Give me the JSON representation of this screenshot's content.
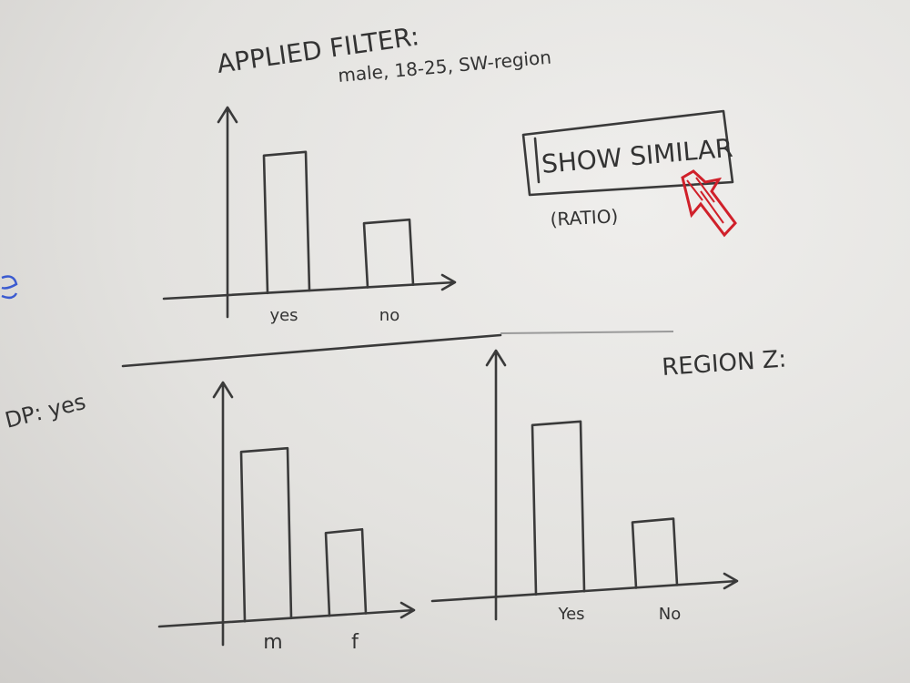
{
  "header": {
    "title": "APPLIED FILTER:",
    "filter": "male, 18-25, SW-region"
  },
  "button": {
    "label": "SHOW SIMILAR",
    "sublabel": "(RATIO)",
    "arrow_color": "#d0202a"
  },
  "side_note": "DP: yes",
  "region_label": "REGION Z:",
  "colors": {
    "ink": "#3a3a3a",
    "accent": "#d0202a",
    "blue_marker": "#3b5bd0"
  },
  "chart_data": [
    {
      "type": "bar",
      "categories": [
        "yes",
        "no"
      ],
      "values": [
        100,
        48
      ],
      "title": "",
      "xlabel": "",
      "ylabel": ""
    },
    {
      "type": "bar",
      "categories": [
        "m",
        "f"
      ],
      "values": [
        100,
        50
      ],
      "title": "",
      "xlabel": "",
      "ylabel": ""
    },
    {
      "type": "bar",
      "categories": [
        "Yes",
        "No"
      ],
      "values": [
        100,
        40
      ],
      "title": "",
      "xlabel": "",
      "ylabel": ""
    }
  ]
}
